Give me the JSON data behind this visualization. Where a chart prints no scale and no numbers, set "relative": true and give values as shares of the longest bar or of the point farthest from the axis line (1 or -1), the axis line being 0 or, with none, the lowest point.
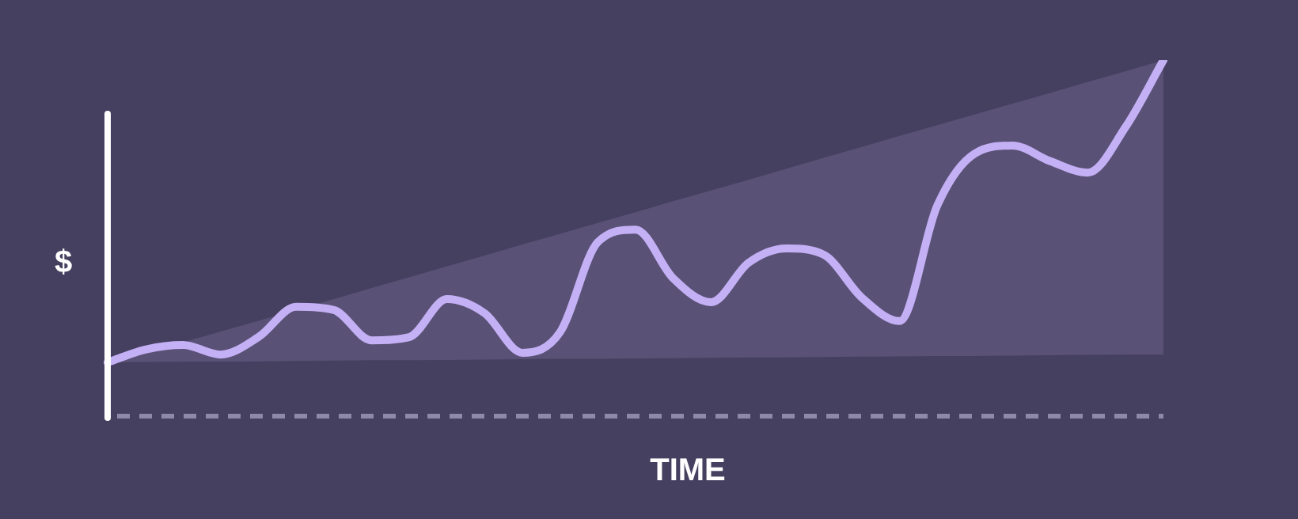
{
  "chart_data": {
    "type": "line",
    "relative": true,
    "xlabel": "TIME",
    "ylabel": "$",
    "categories": [
      null,
      null,
      null,
      null,
      null,
      null,
      null,
      null,
      null,
      null,
      null,
      null,
      null,
      null,
      null,
      null,
      null,
      null,
      null,
      null,
      null,
      null,
      null,
      null,
      null,
      null,
      null,
      null,
      null
    ],
    "series": [
      {
        "color": "#c4b0f5",
        "values": [
          0.151,
          0.187,
          0.2,
          0.173,
          0.222,
          0.307,
          0.298,
          0.213,
          0.222,
          0.329,
          0.289,
          0.178,
          0.236,
          0.489,
          0.524,
          0.387,
          0.32,
          0.431,
          0.471,
          0.453,
          0.333,
          0.267,
          0.591,
          0.738,
          0.76,
          0.716,
          0.684,
          0.813,
          1.0
        ],
        "lower": [
          0.151,
          0.152,
          0.153,
          0.153,
          0.154,
          0.155,
          0.156,
          0.157,
          0.157,
          0.158,
          0.159,
          0.16,
          0.161,
          0.161,
          0.162,
          0.163,
          0.164,
          0.165,
          0.165,
          0.166,
          0.167,
          0.168,
          0.169,
          0.169,
          0.17,
          0.171,
          0.172,
          0.173,
          0.173
        ],
        "upper": [
          0.156,
          0.182,
          0.207,
          0.238,
          0.268,
          0.299,
          0.329,
          0.36,
          0.39,
          0.421,
          0.451,
          0.482,
          0.512,
          0.543,
          0.573,
          0.604,
          0.634,
          0.664,
          0.695,
          0.726,
          0.756,
          0.787,
          0.817,
          0.848,
          0.878,
          0.908,
          0.939,
          0.969,
          1.0
        ]
      }
    ]
  }
}
